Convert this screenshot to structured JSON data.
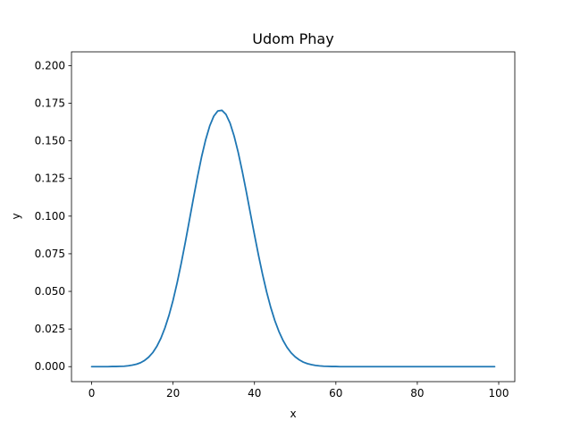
{
  "chart_data": {
    "type": "line",
    "title": "Udom Phay",
    "xlabel": "x",
    "ylabel": "y",
    "xlim": [
      -4.95,
      103.95
    ],
    "ylim": [
      -0.00996,
      0.20916
    ],
    "x_ticks": [
      0,
      20,
      40,
      60,
      80,
      100
    ],
    "x_tick_labels": [
      "0",
      "20",
      "40",
      "60",
      "80",
      "100"
    ],
    "y_ticks": [
      0.0,
      0.025,
      0.05,
      0.075,
      0.1,
      0.125,
      0.15,
      0.175,
      0.2
    ],
    "y_tick_labels": [
      "0.000",
      "0.025",
      "0.050",
      "0.075",
      "0.100",
      "0.125",
      "0.150",
      "0.175",
      "0.200"
    ],
    "grid": false,
    "series": [
      {
        "color": "#1f77b4",
        "x": [
          0,
          1,
          2,
          3,
          4,
          5,
          6,
          7,
          8,
          9,
          10,
          11,
          12,
          13,
          14,
          15,
          16,
          17,
          18,
          19,
          20,
          21,
          22,
          23,
          24,
          25,
          26,
          27,
          28,
          29,
          30,
          31,
          32,
          33,
          34,
          35,
          36,
          37,
          38,
          39,
          40,
          41,
          42,
          43,
          44,
          45,
          46,
          47,
          48,
          49,
          50,
          51,
          52,
          53,
          54,
          55,
          56,
          57,
          58,
          59,
          60,
          61,
          62,
          63,
          64,
          65,
          66,
          67,
          68,
          69,
          70,
          71,
          72,
          73,
          74,
          75,
          76,
          77,
          78,
          79,
          80,
          81,
          82,
          83,
          84,
          85,
          86,
          87,
          88,
          89,
          90,
          91,
          92,
          93,
          94,
          95,
          96,
          97,
          98,
          99
        ],
        "y": [
          0.0,
          0.0,
          0.0,
          0.0,
          0.0,
          0.0001,
          0.0001,
          0.0002,
          0.0003,
          0.0006,
          0.001,
          0.0016,
          0.0026,
          0.0041,
          0.0063,
          0.0093,
          0.0134,
          0.0188,
          0.0257,
          0.0341,
          0.0441,
          0.0557,
          0.0686,
          0.0825,
          0.0971,
          0.1118,
          0.1261,
          0.1393,
          0.1507,
          0.1599,
          0.1664,
          0.1699,
          0.1703,
          0.1676,
          0.1618,
          0.1532,
          0.1424,
          0.1298,
          0.1161,
          0.1018,
          0.0876,
          0.0739,
          0.0611,
          0.0495,
          0.0393,
          0.0306,
          0.0234,
          0.0175,
          0.0128,
          0.0092,
          0.0065,
          0.0045,
          0.003,
          0.002,
          0.0013,
          0.0008,
          0.0005,
          0.0003,
          0.0002,
          0.0001,
          0.0001,
          0.0,
          0.0,
          0.0,
          0.0,
          0.0,
          0.0,
          0.0,
          0.0,
          0.0,
          0.0,
          0.0,
          0.0,
          0.0,
          0.0,
          0.0,
          0.0,
          0.0,
          0.0,
          0.0,
          0.0,
          0.0,
          0.0,
          0.0,
          0.0,
          0.0,
          0.0,
          0.0,
          0.0,
          0.0,
          0.0,
          0.0,
          0.0,
          0.0,
          0.0,
          0.0,
          0.0,
          0.0,
          0.0,
          0.0
        ]
      }
    ]
  }
}
